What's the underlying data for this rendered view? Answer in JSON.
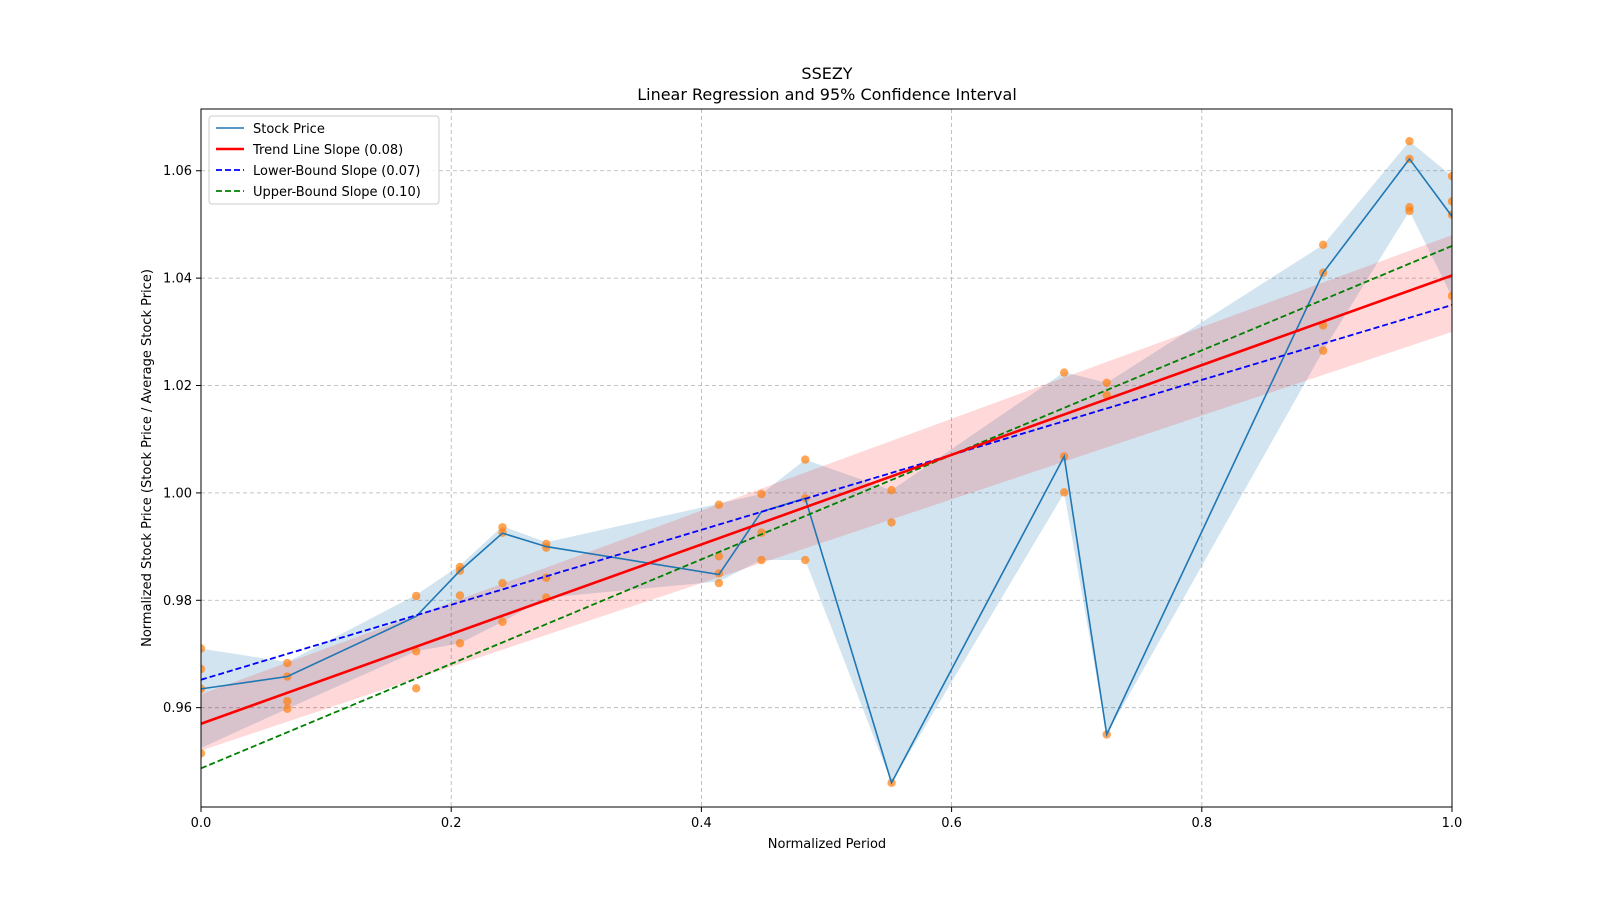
{
  "chart_data": {
    "type": "line",
    "title": "SSEZY",
    "subtitle": "Linear Regression and 95% Confidence Interval",
    "xlabel": "Normalized Period",
    "ylabel": "Normalized Stock Price (Stock Price / Average Stock Price)",
    "xlim": [
      0.0,
      1.0
    ],
    "ylim": [
      0.9415,
      1.0715
    ],
    "grid": true,
    "legend_position": "top-left",
    "x_ticks": [
      {
        "value": 0.0,
        "label": "0.0"
      },
      {
        "value": 0.2,
        "label": "0.2"
      },
      {
        "value": 0.4,
        "label": "0.4"
      },
      {
        "value": 0.6,
        "label": "0.6"
      },
      {
        "value": 0.8,
        "label": "0.8"
      },
      {
        "value": 1.0,
        "label": "1.0"
      }
    ],
    "y_ticks": [
      {
        "value": 0.96,
        "label": "0.96"
      },
      {
        "value": 0.98,
        "label": "0.98"
      },
      {
        "value": 1.0,
        "label": "1.00"
      },
      {
        "value": 1.02,
        "label": "1.02"
      },
      {
        "value": 1.04,
        "label": "1.04"
      },
      {
        "value": 1.06,
        "label": "1.06"
      }
    ],
    "colors": {
      "stock_line": "#1f77b4",
      "stock_band": "#1f77b4",
      "scatter": "#ff7f0e",
      "trend": "#ff0000",
      "lower": "#0000ff",
      "upper": "#008000",
      "grid": "#b0b0b0"
    },
    "stock_price": {
      "name": "Stock Price",
      "x": [
        0.0,
        0.069,
        0.172,
        0.207,
        0.241,
        0.276,
        0.414,
        0.448,
        0.483,
        0.552,
        0.69,
        0.724,
        0.897,
        0.966,
        1.0
      ],
      "y": [
        0.9635,
        0.9658,
        0.977,
        0.9855,
        0.9925,
        0.99,
        0.9848,
        0.9965,
        0.999,
        0.946,
        1.0068,
        0.955,
        1.041,
        1.0622,
        1.0515
      ],
      "lower": [
        0.9525,
        0.9598,
        0.9705,
        0.972,
        0.976,
        0.9805,
        0.9835,
        0.9875,
        0.9875,
        0.946,
        1.0,
        0.955,
        1.0265,
        1.0525,
        1.0365
      ],
      "upper": [
        0.971,
        0.9685,
        0.981,
        0.9865,
        0.9938,
        0.9908,
        0.998,
        0.9998,
        1.0062,
        1.0005,
        1.0225,
        1.0205,
        1.0462,
        1.0655,
        1.059
      ]
    },
    "trend_line": {
      "name": "Trend Line Slope (0.08)",
      "x": [
        0.0,
        1.0
      ],
      "y": [
        0.957,
        1.0405
      ],
      "band_lower": [
        0.952,
        1.03
      ],
      "band_upper": [
        0.9625,
        1.048
      ]
    },
    "lower_bound": {
      "name": "Lower-Bound Slope (0.07)",
      "x": [
        0.0,
        1.0
      ],
      "y": [
        0.9652,
        1.035
      ]
    },
    "upper_bound": {
      "name": "Upper-Bound Slope (0.10)",
      "x": [
        0.0,
        1.0
      ],
      "y": [
        0.9487,
        1.046
      ]
    },
    "scatter_points": {
      "x": [
        0.0,
        0.0,
        0.0,
        0.0,
        0.069,
        0.069,
        0.069,
        0.069,
        0.172,
        0.172,
        0.172,
        0.207,
        0.207,
        0.207,
        0.207,
        0.241,
        0.241,
        0.241,
        0.241,
        0.276,
        0.276,
        0.276,
        0.276,
        0.414,
        0.414,
        0.414,
        0.414,
        0.448,
        0.448,
        0.448,
        0.483,
        0.483,
        0.483,
        0.552,
        0.552,
        0.552,
        0.69,
        0.69,
        0.69,
        0.724,
        0.724,
        0.724,
        0.897,
        0.897,
        0.897,
        0.897,
        0.966,
        0.966,
        0.966,
        0.966,
        1.0,
        1.0,
        1.0,
        1.0
      ],
      "y": [
        0.971,
        0.9672,
        0.9635,
        0.9515,
        0.9683,
        0.9658,
        0.9612,
        0.9598,
        0.9808,
        0.9705,
        0.9636,
        0.9862,
        0.9855,
        0.9809,
        0.972,
        0.9936,
        0.9926,
        0.9832,
        0.976,
        0.9905,
        0.9898,
        0.9842,
        0.9805,
        0.9978,
        0.9882,
        0.985,
        0.9832,
        0.9998,
        0.9926,
        0.9875,
        1.0062,
        0.999,
        0.9875,
        1.0005,
        0.9945,
        0.946,
        1.0224,
        1.0068,
        1.0001,
        1.0205,
        1.0182,
        0.955,
        1.0462,
        1.041,
        1.0312,
        1.0265,
        1.0655,
        1.0622,
        1.0532,
        1.0525,
        1.059,
        1.0543,
        1.0518,
        1.0367
      ]
    }
  }
}
